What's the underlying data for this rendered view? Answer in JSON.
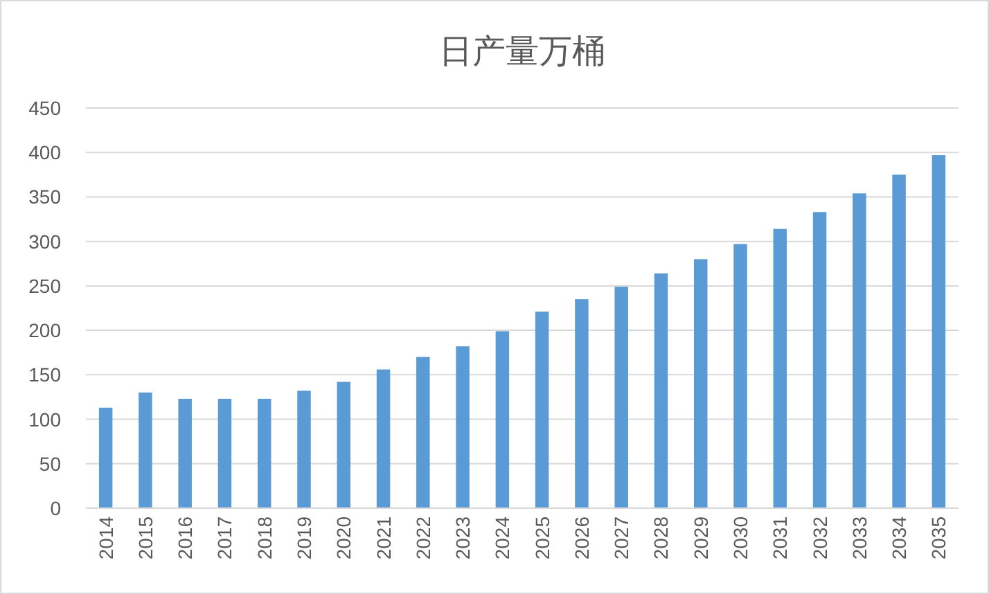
{
  "chart_data": {
    "type": "bar",
    "title": "日产量万桶",
    "categories": [
      "2014",
      "2015",
      "2016",
      "2017",
      "2018",
      "2019",
      "2020",
      "2021",
      "2022",
      "2023",
      "2024",
      "2025",
      "2026",
      "2027",
      "2028",
      "2029",
      "2030",
      "2031",
      "2032",
      "2033",
      "2034",
      "2035"
    ],
    "values": [
      113,
      130,
      123,
      123,
      123,
      132,
      142,
      156,
      170,
      182,
      199,
      221,
      235,
      249,
      264,
      280,
      297,
      314,
      333,
      354,
      375,
      397
    ],
    "color": "#5b9bd5",
    "ylim": [
      0,
      450
    ],
    "yticks": [
      0,
      50,
      100,
      150,
      200,
      250,
      300,
      350,
      400,
      450
    ],
    "grid": "y"
  }
}
